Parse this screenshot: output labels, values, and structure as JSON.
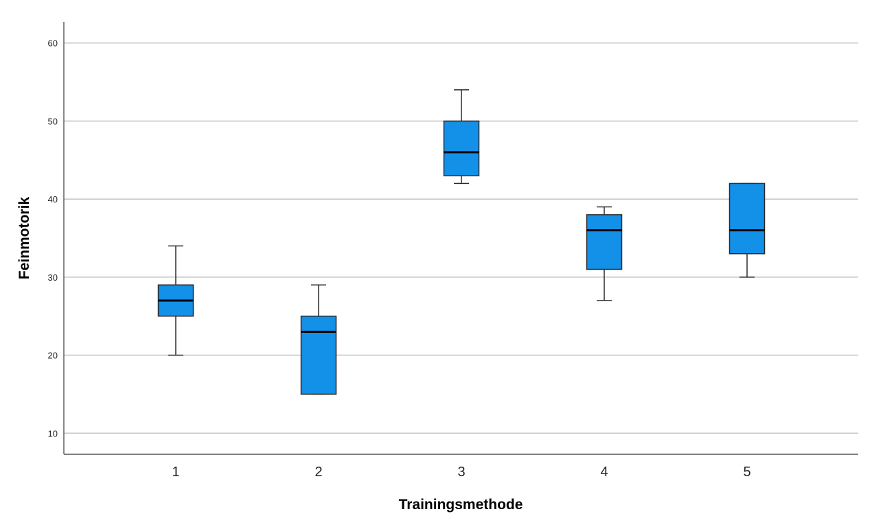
{
  "chart_data": {
    "type": "boxplot",
    "xlabel": "Trainingsmethode",
    "ylabel": "Feinmotorik",
    "ylim": [
      7.3,
      62.7
    ],
    "yticks": [
      10,
      20,
      30,
      40,
      50,
      60
    ],
    "grid": "horizontal",
    "categories": [
      "1",
      "2",
      "3",
      "4",
      "5"
    ],
    "boxes": [
      {
        "category": "1",
        "min": 20,
        "q1": 25,
        "median": 27,
        "q3": 29,
        "max": 34
      },
      {
        "category": "2",
        "min": 15,
        "q1": 15,
        "median": 23,
        "q3": 25,
        "max": 29
      },
      {
        "category": "3",
        "min": 42,
        "q1": 43,
        "median": 46,
        "q3": 50,
        "max": 54
      },
      {
        "category": "4",
        "min": 27,
        "q1": 31,
        "median": 36,
        "q3": 38,
        "max": 39
      },
      {
        "category": "5",
        "min": 30,
        "q1": 33,
        "median": 36,
        "q3": 42,
        "max": 42
      }
    ],
    "colors": {
      "box_fill": "#1390E8",
      "box_stroke": "#2a2a2a",
      "median": "#000000",
      "whisker": "#2a2a2a",
      "grid": "#c8c8c8",
      "axis": "#555555"
    }
  }
}
